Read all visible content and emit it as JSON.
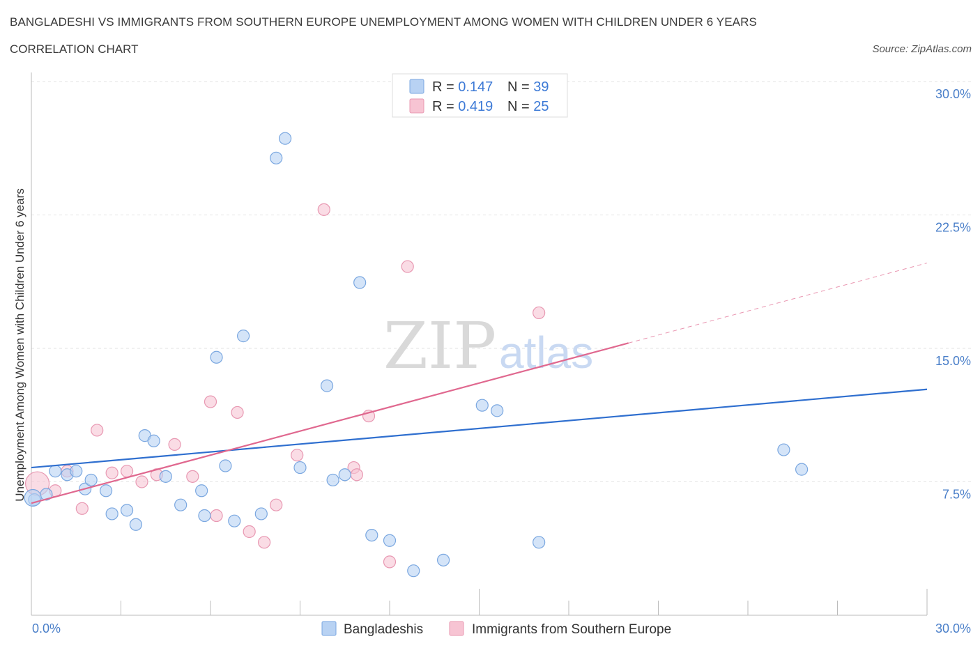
{
  "header": {
    "title": "BANGLADESHI VS IMMIGRANTS FROM SOUTHERN EUROPE UNEMPLOYMENT AMONG WOMEN WITH CHILDREN UNDER 6 YEARS",
    "subtitle": "CORRELATION CHART",
    "source": "Source: ZipAtlas.com"
  },
  "watermark": {
    "zip": "ZIP",
    "atlas": "atlas"
  },
  "legend": {
    "rows": [
      {
        "r_label": "R = ",
        "r_value": "0.147",
        "n_label": "N = ",
        "n_value": "39"
      },
      {
        "r_label": "R = ",
        "r_value": "0.419",
        "n_label": "N = ",
        "n_value": "25"
      }
    ]
  },
  "bottom_legend": [
    "Bangladeshis",
    "Immigrants from Southern Europe"
  ],
  "colors": {
    "blue_fill": "#b8d2f3",
    "blue_stroke": "#7aa7e0",
    "blue_line": "#2f6fcf",
    "pink_fill": "#f7c4d3",
    "pink_stroke": "#e898b2",
    "pink_line": "#e0688f",
    "grid": "#e3e3e3",
    "tick_text": "#4a7fc9"
  },
  "chart_data": {
    "type": "scatter",
    "title": "BANGLADESHI VS IMMIGRANTS FROM SOUTHERN EUROPE UNEMPLOYMENT AMONG WOMEN WITH CHILDREN UNDER 6 YEARS",
    "xlabel": "",
    "ylabel": "Unemployment Among Women with Children Under 6 years",
    "xlim": [
      0,
      30
    ],
    "ylim": [
      0,
      30
    ],
    "x_tick_labels": [
      "0.0%",
      "30.0%"
    ],
    "y_ticks": [
      7.5,
      15.0,
      22.5,
      30.0
    ],
    "y_tick_labels": [
      "7.5%",
      "15.0%",
      "22.5%",
      "30.0%"
    ],
    "grid": true,
    "legend_position": "top-center",
    "series": [
      {
        "name": "Bangladeshis",
        "color": "#7aa7e0",
        "points": [
          [
            0.1,
            6.5
          ],
          [
            0.5,
            6.8
          ],
          [
            0.8,
            8.1
          ],
          [
            1.2,
            7.9
          ],
          [
            1.5,
            8.1
          ],
          [
            1.8,
            7.1
          ],
          [
            2.0,
            7.6
          ],
          [
            2.5,
            7.0
          ],
          [
            2.7,
            5.7
          ],
          [
            3.2,
            5.9
          ],
          [
            3.5,
            5.1
          ],
          [
            3.8,
            10.1
          ],
          [
            4.1,
            9.8
          ],
          [
            4.5,
            7.8
          ],
          [
            5.0,
            6.2
          ],
          [
            5.7,
            7.0
          ],
          [
            5.8,
            5.6
          ],
          [
            6.2,
            14.5
          ],
          [
            6.5,
            8.4
          ],
          [
            6.8,
            5.3
          ],
          [
            7.1,
            15.7
          ],
          [
            7.7,
            5.7
          ],
          [
            8.2,
            25.7
          ],
          [
            8.5,
            26.8
          ],
          [
            9.0,
            8.3
          ],
          [
            9.9,
            12.9
          ],
          [
            10.1,
            7.6
          ],
          [
            10.5,
            7.9
          ],
          [
            11.0,
            18.7
          ],
          [
            11.4,
            4.5
          ],
          [
            12.0,
            4.2
          ],
          [
            12.8,
            2.5
          ],
          [
            13.8,
            3.1
          ],
          [
            15.1,
            11.8
          ],
          [
            15.6,
            11.5
          ],
          [
            17.0,
            4.1
          ],
          [
            25.2,
            9.3
          ],
          [
            25.8,
            8.2
          ],
          [
            0.05,
            6.6
          ]
        ],
        "trend": {
          "x": [
            0,
            30
          ],
          "y": [
            8.3,
            12.7
          ]
        }
      },
      {
        "name": "Immigrants from Southern Europe",
        "color": "#e898b2",
        "points": [
          [
            0.2,
            7.4
          ],
          [
            0.8,
            7.0
          ],
          [
            1.2,
            8.1
          ],
          [
            1.7,
            6.0
          ],
          [
            2.2,
            10.4
          ],
          [
            2.7,
            8.0
          ],
          [
            3.2,
            8.1
          ],
          [
            3.7,
            7.5
          ],
          [
            4.2,
            7.9
          ],
          [
            4.8,
            9.6
          ],
          [
            5.4,
            7.8
          ],
          [
            6.0,
            12.0
          ],
          [
            6.2,
            5.6
          ],
          [
            6.9,
            11.4
          ],
          [
            7.3,
            4.7
          ],
          [
            7.8,
            4.1
          ],
          [
            8.2,
            6.2
          ],
          [
            8.9,
            9.0
          ],
          [
            9.8,
            22.8
          ],
          [
            10.8,
            8.3
          ],
          [
            10.9,
            7.9
          ],
          [
            11.3,
            11.2
          ],
          [
            12.0,
            3.0
          ],
          [
            12.6,
            19.6
          ],
          [
            17.0,
            17.0
          ]
        ],
        "trend": {
          "x": [
            0,
            20
          ],
          "y": [
            6.3,
            15.3
          ]
        },
        "trend_extension": {
          "x": [
            20,
            30
          ],
          "y": [
            15.3,
            19.8
          ]
        }
      }
    ]
  }
}
